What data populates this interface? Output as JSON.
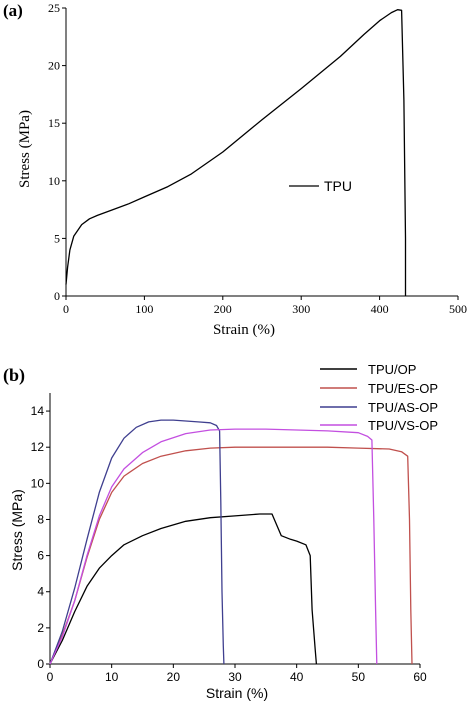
{
  "chart_data": [
    {
      "type": "line",
      "panel_label": "(a)",
      "xlabel": "Strain (%)",
      "ylabel": "Stress (MPa)",
      "xlim": [
        0,
        500
      ],
      "ylim": [
        0,
        25
      ],
      "xticks": [
        0,
        100,
        200,
        300,
        400,
        500
      ],
      "yticks": [
        0,
        5,
        10,
        15,
        20,
        25
      ],
      "legend_position": "center-right",
      "series": [
        {
          "name": "TPU",
          "color": "#000000",
          "x": [
            0,
            2,
            5,
            10,
            20,
            30,
            40,
            60,
            80,
            100,
            130,
            160,
            200,
            250,
            300,
            350,
            380,
            400,
            415,
            423,
            428,
            431,
            433,
            433
          ],
          "y": [
            1.0,
            2.5,
            4.0,
            5.2,
            6.2,
            6.7,
            7.0,
            7.5,
            8.0,
            8.6,
            9.5,
            10.6,
            12.5,
            15.3,
            18.0,
            20.8,
            22.7,
            23.9,
            24.6,
            24.85,
            24.8,
            17.0,
            5.0,
            0
          ]
        }
      ],
      "grid": false
    },
    {
      "type": "line",
      "panel_label": "(b)",
      "xlabel": "Strain (%)",
      "ylabel": "Stress (MPa)",
      "xlim": [
        0,
        60
      ],
      "ylim": [
        0,
        15
      ],
      "xticks": [
        0,
        10,
        20,
        30,
        40,
        50,
        60
      ],
      "yticks": [
        0,
        2,
        4,
        6,
        8,
        10,
        12,
        14
      ],
      "legend_position": "top-right",
      "series": [
        {
          "name": "TPU/OP",
          "color": "#000000",
          "x": [
            0,
            2,
            4,
            6,
            8,
            10,
            12,
            15,
            18,
            22,
            26,
            30,
            34,
            36,
            36.5,
            37.5,
            39,
            40,
            41.5,
            42.2,
            42.5,
            43,
            43.2
          ],
          "y": [
            0,
            1.3,
            2.9,
            4.3,
            5.3,
            6.0,
            6.6,
            7.1,
            7.5,
            7.9,
            8.1,
            8.2,
            8.3,
            8.3,
            7.9,
            7.1,
            6.9,
            6.8,
            6.6,
            6.0,
            3.0,
            0.8,
            0
          ]
        },
        {
          "name": "TPU/ES-OP",
          "color": "#c0504d",
          "x": [
            0,
            2,
            4,
            6,
            8,
            10,
            12,
            15,
            18,
            22,
            26,
            30,
            35,
            40,
            45,
            50,
            55,
            57,
            58.0,
            58.3,
            58.5,
            58.7
          ],
          "y": [
            0,
            1.6,
            3.5,
            5.9,
            8.0,
            9.5,
            10.4,
            11.1,
            11.5,
            11.8,
            11.95,
            12.0,
            12.0,
            12.0,
            12.0,
            11.95,
            11.9,
            11.75,
            11.5,
            8.0,
            3.0,
            0
          ]
        },
        {
          "name": "TPU/AS-OP",
          "color": "#3f3f8f",
          "x": [
            0,
            2,
            4,
            6,
            8,
            10,
            12,
            14,
            16,
            18,
            20,
            22,
            24,
            26,
            27,
            27.5,
            27.7,
            27.9,
            28.1,
            28.2
          ],
          "y": [
            0,
            1.8,
            4.2,
            6.9,
            9.5,
            11.4,
            12.5,
            13.1,
            13.4,
            13.5,
            13.5,
            13.45,
            13.4,
            13.35,
            13.2,
            12.9,
            9.0,
            4.0,
            1.0,
            0
          ]
        },
        {
          "name": "TPU/VS-OP",
          "color": "#c34fe0",
          "x": [
            0,
            2,
            4,
            6,
            8,
            10,
            12,
            15,
            18,
            22,
            26,
            30,
            35,
            40,
            45,
            50,
            51.5,
            52.2,
            52.5,
            52.8,
            53.0
          ],
          "y": [
            0,
            1.5,
            3.5,
            6.0,
            8.2,
            9.8,
            10.8,
            11.7,
            12.3,
            12.75,
            12.95,
            13.0,
            13.0,
            12.95,
            12.9,
            12.8,
            12.6,
            12.4,
            8.0,
            3.0,
            0
          ]
        }
      ],
      "grid": false
    }
  ]
}
